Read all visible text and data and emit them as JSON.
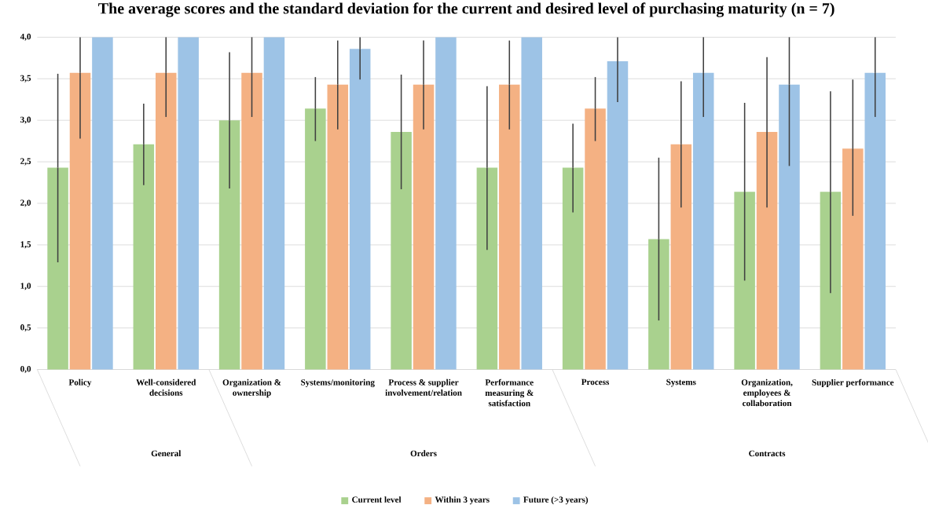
{
  "chart_data": {
    "type": "bar",
    "title": "The average scores and the standard deviation for the current and desired level of purchasing maturity (n = 7)",
    "categories": [
      "Policy",
      "Well-considered decisions",
      "Organization & ownership",
      "Systems/monitoring",
      "Process & supplier involvement/relation",
      "Performance measuring & satisfaction",
      "Process",
      "Systems",
      "Organization, employees & collaboration",
      "Supplier performance"
    ],
    "series": [
      {
        "name": "Current level",
        "color": "#a9d18e",
        "values": [
          2.43,
          2.71,
          3.0,
          3.14,
          2.86,
          2.43,
          2.43,
          1.57,
          2.14,
          2.14
        ],
        "errors": [
          [
            1.29,
            3.56
          ],
          [
            2.22,
            3.2
          ],
          [
            2.18,
            3.82
          ],
          [
            2.75,
            3.52
          ],
          [
            2.17,
            3.55
          ],
          [
            1.44,
            3.41
          ],
          [
            1.89,
            2.96
          ],
          [
            0.59,
            2.55
          ],
          [
            1.07,
            3.21
          ],
          [
            0.92,
            3.35
          ]
        ]
      },
      {
        "name": "Within 3 years",
        "color": "#f4b183",
        "values": [
          3.57,
          3.57,
          3.57,
          3.43,
          3.43,
          3.43,
          3.14,
          2.71,
          2.86,
          2.66
        ],
        "errors": [
          [
            2.78,
            4.0
          ],
          [
            3.04,
            4.0
          ],
          [
            3.04,
            4.0
          ],
          [
            2.89,
            3.96
          ],
          [
            2.89,
            3.96
          ],
          [
            2.89,
            3.96
          ],
          [
            2.75,
            3.52
          ],
          [
            1.95,
            3.47
          ],
          [
            1.95,
            3.76
          ],
          [
            1.85,
            3.49
          ]
        ]
      },
      {
        "name": "Future (>3 years)",
        "color": "#9dc3e6",
        "values": [
          4.0,
          4.0,
          4.0,
          3.86,
          4.0,
          4.0,
          3.71,
          3.57,
          3.43,
          3.57
        ],
        "errors": [
          null,
          null,
          null,
          [
            3.49,
            4.0
          ],
          null,
          null,
          [
            3.22,
            4.0
          ],
          [
            3.04,
            4.0
          ],
          [
            2.45,
            4.0
          ],
          [
            3.04,
            4.0
          ]
        ]
      }
    ],
    "ylim": [
      0,
      4
    ],
    "yticks": [
      {
        "value": 0,
        "label": "0,0"
      },
      {
        "value": 0.5,
        "label": "0,5"
      },
      {
        "value": 1,
        "label": "1,0"
      },
      {
        "value": 1.5,
        "label": "1,5"
      },
      {
        "value": 2,
        "label": "2,0"
      },
      {
        "value": 2.5,
        "label": "2,5"
      },
      {
        "value": 3,
        "label": "3,0"
      },
      {
        "value": 3.5,
        "label": "3,5"
      },
      {
        "value": 4,
        "label": "4,0"
      }
    ],
    "annotations": [
      "General",
      "Orders",
      "Contracts"
    ],
    "grid": "y",
    "legend": "bottom"
  }
}
